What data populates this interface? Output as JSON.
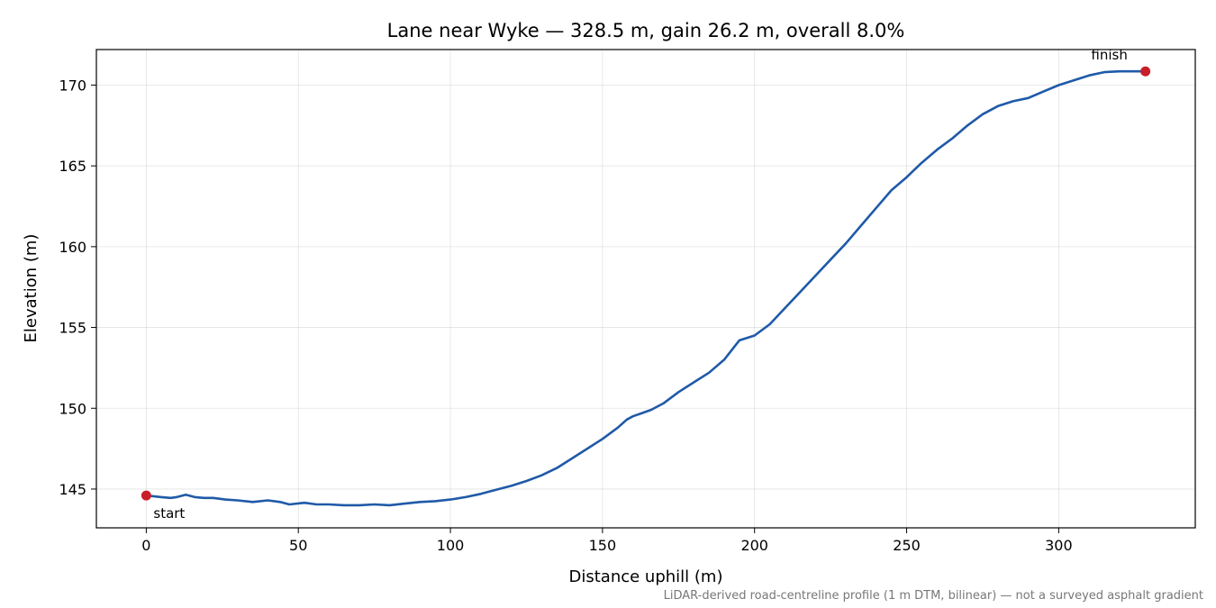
{
  "chart_data": {
    "type": "line",
    "title": "Lane near Wyke — 328.5 m, gain 26.2 m, overall 8.0%",
    "xlabel": "Distance uphill (m)",
    "ylabel": "Elevation (m)",
    "xlim": [
      -16.4,
      344.9
    ],
    "ylim": [
      142.6,
      172.2
    ],
    "xticks": [
      0,
      50,
      100,
      150,
      200,
      250,
      300
    ],
    "yticks": [
      145,
      150,
      155,
      160,
      165,
      170
    ],
    "grid": true,
    "series": [
      {
        "color": "#1f5aa8",
        "x": [
          0,
          5,
          8,
          10,
          13,
          16,
          19,
          22,
          26,
          30,
          35,
          40,
          44,
          47,
          52,
          56,
          60,
          65,
          70,
          75,
          80,
          85,
          90,
          95,
          100,
          105,
          110,
          115,
          120,
          125,
          130,
          135,
          140,
          145,
          150,
          155,
          158,
          160,
          163,
          166,
          170,
          175,
          180,
          185,
          190,
          195,
          200,
          205,
          210,
          215,
          220,
          225,
          230,
          235,
          240,
          245,
          250,
          255,
          260,
          265,
          270,
          275,
          280,
          285,
          290,
          295,
          300,
          305,
          310,
          315,
          320,
          325,
          328.5
        ],
        "y": [
          144.6,
          144.5,
          144.45,
          144.5,
          144.65,
          144.5,
          144.45,
          144.45,
          144.35,
          144.3,
          144.2,
          144.3,
          144.2,
          144.05,
          144.15,
          144.05,
          144.05,
          144.0,
          144.0,
          144.05,
          144.0,
          144.1,
          144.2,
          144.25,
          144.35,
          144.5,
          144.7,
          144.95,
          145.2,
          145.5,
          145.85,
          146.3,
          146.9,
          147.5,
          148.1,
          148.8,
          149.3,
          149.5,
          149.7,
          149.9,
          150.3,
          151.0,
          151.6,
          152.2,
          153.0,
          154.2,
          154.5,
          155.2,
          156.2,
          157.2,
          158.2,
          159.2,
          160.2,
          161.3,
          162.4,
          163.5,
          164.3,
          165.2,
          166.0,
          166.7,
          167.5,
          168.2,
          168.7,
          169.0,
          169.2,
          169.6,
          170.0,
          170.3,
          170.6,
          170.8,
          170.85,
          170.85,
          170.85
        ]
      }
    ],
    "annotations": [
      {
        "text": "start",
        "x": 0,
        "y": 144.6,
        "color": "#c81e2a"
      },
      {
        "text": "finish",
        "x": 328.5,
        "y": 170.85,
        "color": "#c81e2a"
      }
    ],
    "footnote": "LiDAR-derived road-centreline profile (1 m DTM, bilinear) — not a surveyed asphalt gradient"
  }
}
